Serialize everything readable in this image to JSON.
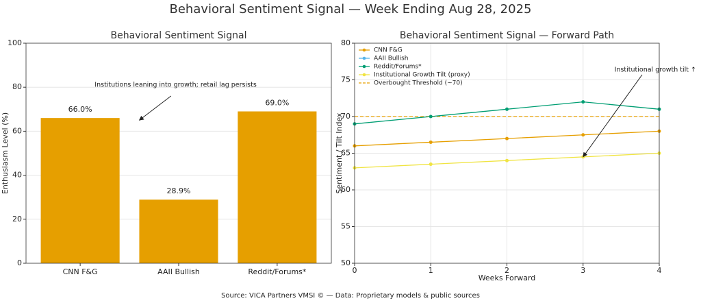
{
  "title": "Behavioral Sentiment Signal — Week Ending Aug 28, 2025",
  "footer": "Source: VICA Partners VMSI © — Data: Proprietary models & public sources",
  "chart_data": [
    {
      "type": "bar",
      "title": "Behavioral Sentiment Signal",
      "categories": [
        "CNN F&G",
        "AAII Bullish",
        "Reddit/Forums*"
      ],
      "values": [
        66,
        28.9,
        69
      ],
      "value_labels": [
        "66.0%",
        "28.9%",
        "69.0%"
      ],
      "color": "#e69f00",
      "ylabel": "Enthusiasm Level (%)",
      "ylim": [
        0,
        100
      ],
      "yticks": [
        0,
        20,
        40,
        60,
        80,
        100
      ],
      "grid": true,
      "annotation": "Institutions leaning into growth; retail lag persists"
    },
    {
      "type": "line",
      "title": "Behavioral Sentiment Signal — Forward Path",
      "x": [
        0,
        1,
        2,
        3,
        4
      ],
      "xlim": [
        0,
        4
      ],
      "xticks": [
        0,
        1,
        2,
        3,
        4
      ],
      "ylim": [
        50,
        80
      ],
      "yticks": [
        50,
        55,
        60,
        65,
        70,
        75,
        80
      ],
      "xlabel": "Weeks Forward",
      "ylabel": "Sentiment / Tilt Index",
      "grid": true,
      "legend": "upper left",
      "series": [
        {
          "name": "CNN F&G",
          "color": "#e69f00",
          "values": [
            66,
            66.5,
            67,
            67.5,
            68
          ]
        },
        {
          "name": "AAII Bullish",
          "color": "#56b4e9",
          "values": [
            null,
            null,
            null,
            null,
            null
          ]
        },
        {
          "name": "Reddit/Forums*",
          "color": "#009e73",
          "values": [
            69,
            70,
            71,
            72,
            71
          ]
        },
        {
          "name": "Institutional Growth Tilt (proxy)",
          "color": "#f0e442",
          "values": [
            63,
            63.5,
            64,
            64.5,
            65
          ]
        }
      ],
      "threshold": {
        "name": "Overbought Threshold (~70)",
        "value": 70,
        "color": "#e69f00"
      },
      "annotation": "Institutional growth tilt ↑"
    }
  ]
}
